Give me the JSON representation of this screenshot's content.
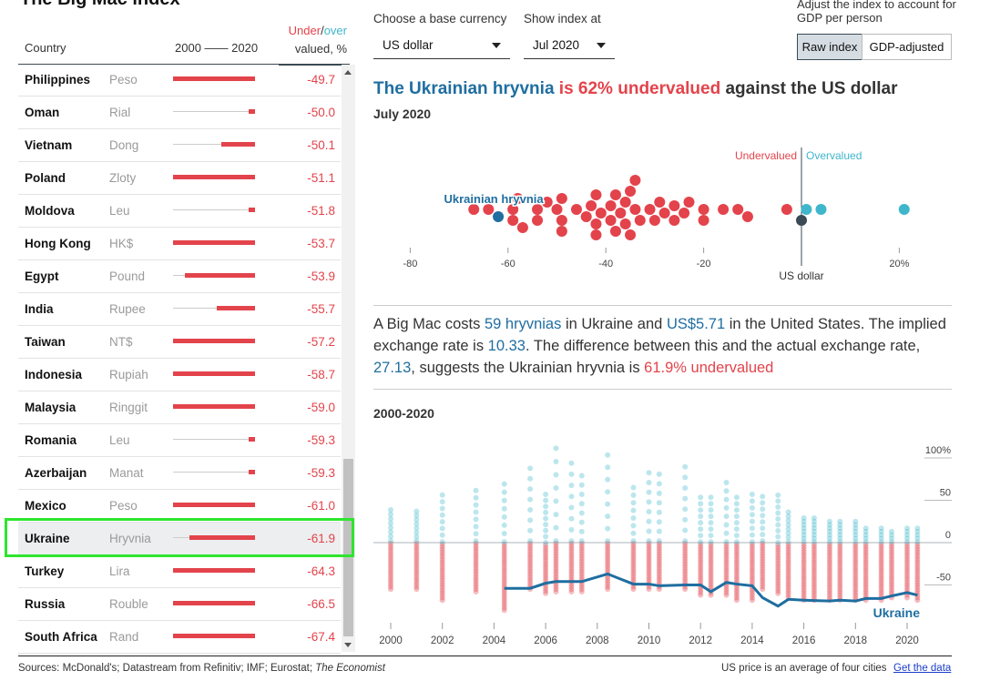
{
  "title": "The Big Mac index",
  "table": {
    "header": {
      "country": "Country",
      "years": "2000 —— 2020",
      "under": "Under",
      "slash": "/",
      "over": "over",
      "valued": "valued, %"
    },
    "rows": [
      {
        "country": "Philippines",
        "currency": "Peso",
        "value": "-49.7",
        "start": 2000
      },
      {
        "country": "Oman",
        "currency": "Rial",
        "value": "-50.0",
        "start": 2019
      },
      {
        "country": "Vietnam",
        "currency": "Dong",
        "value": "-50.1",
        "start": 2012
      },
      {
        "country": "Poland",
        "currency": "Zloty",
        "value": "-51.1",
        "start": 2000
      },
      {
        "country": "Moldova",
        "currency": "Leu",
        "value": "-51.8",
        "start": 2019
      },
      {
        "country": "Hong Kong",
        "currency": "HK$",
        "value": "-53.7",
        "start": 2000
      },
      {
        "country": "Egypt",
        "currency": "Pound",
        "value": "-53.9",
        "start": 2003
      },
      {
        "country": "India",
        "currency": "Rupee",
        "value": "-55.7",
        "start": 2011
      },
      {
        "country": "Taiwan",
        "currency": "NT$",
        "value": "-57.2",
        "start": 2000
      },
      {
        "country": "Indonesia",
        "currency": "Rupiah",
        "value": "-58.7",
        "start": 2000
      },
      {
        "country": "Malaysia",
        "currency": "Ringgit",
        "value": "-59.0",
        "start": 2000
      },
      {
        "country": "Romania",
        "currency": "Leu",
        "value": "-59.3",
        "start": 2019
      },
      {
        "country": "Azerbaijan",
        "currency": "Manat",
        "value": "-59.3",
        "start": 2019
      },
      {
        "country": "Mexico",
        "currency": "Peso",
        "value": "-61.0",
        "start": 2000
      },
      {
        "country": "Ukraine",
        "currency": "Hryvnia",
        "value": "-61.9",
        "start": 2004,
        "selected": true
      },
      {
        "country": "Turkey",
        "currency": "Lira",
        "value": "-64.3",
        "start": 2000
      },
      {
        "country": "Russia",
        "currency": "Rouble",
        "value": "-66.5",
        "start": 2000
      },
      {
        "country": "South Africa",
        "currency": "Rand",
        "value": "-67.4",
        "start": 2000
      }
    ]
  },
  "controls": {
    "base_label": "Choose a base currency",
    "base_value": "US dollar",
    "date_label": "Show index at",
    "date_value": "Jul 2020",
    "adjust_label": "Adjust the index to account for GDP per person",
    "raw": "Raw index",
    "gdp": "GDP-adjusted"
  },
  "headline": {
    "a": "The Ukrainian hryvnia",
    "b": " is 62% undervalued",
    "c": " against the US dollar"
  },
  "subtitle": "July 2020",
  "colors": {
    "under": "#e3434b",
    "over": "#3fb6cc",
    "highlight": "#1f6ea0",
    "base": "#3b4a54"
  },
  "chart_data": [
    {
      "type": "scatter",
      "subtitle": "July 2020",
      "annotations": {
        "under": "Undervalued",
        "over": "Overvalued",
        "base": "US dollar",
        "highlight": "Ukrainian hryvnia"
      },
      "xticks": [
        "-80",
        "-60",
        "-40",
        "-20",
        "20%"
      ],
      "xtick_values": [
        -80,
        -60,
        -40,
        -20,
        20
      ],
      "xlim": [
        -80,
        20
      ],
      "highlight_value": -62,
      "values": [
        -67,
        -64,
        -59,
        -59,
        -58,
        -57,
        -54,
        -54,
        -52,
        -50,
        -49,
        -49,
        -49,
        -46,
        -44,
        -43,
        -42,
        -42,
        -42,
        -41,
        -39,
        -39,
        -38,
        -38,
        -37,
        -36,
        -36,
        -35,
        -35,
        -34,
        -34,
        -33,
        -31,
        -30,
        -29,
        -28,
        -26,
        -26,
        -24,
        -23,
        -20,
        -20,
        -16,
        -13,
        -11,
        -3,
        1,
        4,
        21
      ]
    },
    {
      "type": "line",
      "title": "2000-2020",
      "series_label": "Ukraine",
      "yticks": [
        "100%",
        "50",
        "0",
        "-50"
      ],
      "ytick_values": [
        100,
        50,
        0,
        -50
      ],
      "ylim": [
        -90,
        120
      ],
      "xticks": [
        "2000",
        "2002",
        "2004",
        "2006",
        "2008",
        "2010",
        "2012",
        "2014",
        "2016",
        "2018",
        "2020"
      ],
      "ukraine": [
        [
          2004.4,
          -54
        ],
        [
          2005.4,
          -54
        ],
        [
          2006,
          -48
        ],
        [
          2006.4,
          -46
        ],
        [
          2007,
          -46
        ],
        [
          2007.4,
          -46
        ],
        [
          2008.4,
          -37
        ],
        [
          2009.4,
          -49
        ],
        [
          2010,
          -49
        ],
        [
          2010.4,
          -51
        ],
        [
          2011.4,
          -50
        ],
        [
          2012,
          -50
        ],
        [
          2012.4,
          -58
        ],
        [
          2013,
          -47
        ],
        [
          2013.4,
          -49
        ],
        [
          2014,
          -51
        ],
        [
          2014.4,
          -65
        ],
        [
          2015,
          -75
        ],
        [
          2015.4,
          -67
        ],
        [
          2016,
          -68
        ],
        [
          2017,
          -69
        ],
        [
          2017.4,
          -68
        ],
        [
          2018,
          -69
        ],
        [
          2018.4,
          -66
        ],
        [
          2019,
          -66
        ],
        [
          2019.4,
          -63
        ],
        [
          2020,
          -59
        ],
        [
          2020.4,
          -62
        ]
      ],
      "surveys": [
        [
          2000,
          -55,
          42
        ],
        [
          2001,
          -55,
          40
        ],
        [
          2002,
          -68,
          63
        ],
        [
          2003.3,
          -58,
          68
        ],
        [
          2004.4,
          -80,
          78
        ],
        [
          2005.4,
          -55,
          98
        ],
        [
          2006,
          -60,
          57
        ],
        [
          2006.4,
          -58,
          125
        ],
        [
          2007,
          -58,
          105
        ],
        [
          2007.4,
          -58,
          88
        ],
        [
          2008.4,
          -55,
          116
        ],
        [
          2009.4,
          -55,
          72
        ],
        [
          2010,
          -55,
          92
        ],
        [
          2010.4,
          -55,
          90
        ],
        [
          2011.4,
          -55,
          100
        ],
        [
          2012,
          -62,
          60
        ],
        [
          2012.4,
          -62,
          60
        ],
        [
          2013,
          -62,
          80
        ],
        [
          2013.4,
          -68,
          60
        ],
        [
          2014,
          -68,
          64
        ],
        [
          2014.4,
          -55,
          60
        ],
        [
          2015,
          -60,
          56
        ],
        [
          2015.4,
          -65,
          40
        ],
        [
          2016,
          -68,
          30
        ],
        [
          2016.4,
          -68,
          30
        ],
        [
          2017,
          -68,
          25
        ],
        [
          2017.4,
          -68,
          25
        ],
        [
          2018,
          -68,
          28
        ],
        [
          2018.4,
          -68,
          20
        ],
        [
          2019,
          -68,
          18
        ],
        [
          2019.4,
          -65,
          14
        ],
        [
          2020,
          -65,
          17
        ],
        [
          2020.4,
          -68,
          20
        ]
      ]
    }
  ],
  "paragraph": {
    "t1": "A Big Mac costs ",
    "p1": "59 hryvnias",
    "t2": " in Ukraine and ",
    "p2": "US$5.71",
    "t3": " in the United States. The implied exchange rate is ",
    "p3": "10.33",
    "t4": ". The difference between this and the actual exchange rate, ",
    "p4": "27.13",
    "t5": ", suggests the Ukrainian hryvnia is ",
    "p5": "61.9% undervalued"
  },
  "footer": {
    "sources": "Sources: McDonald's; Datastream from Refinitiv; IMF; Eurostat; ",
    "economist": "The Economist",
    "note": "US price is an average of four cities",
    "link": "Get the data"
  }
}
